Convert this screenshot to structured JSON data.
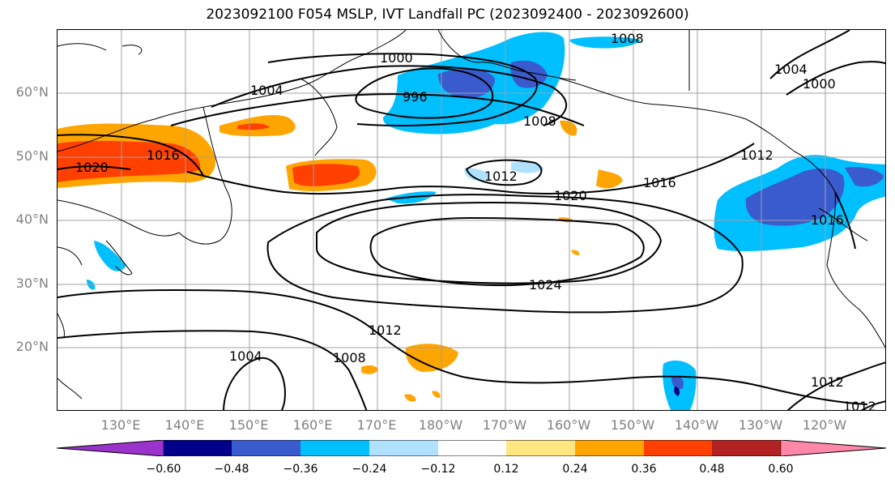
{
  "title": "2023092100 F054 MSLP, IVT Landfall PC (2023092400 - 2023092600)",
  "map": {
    "lat_labels": [
      "60°N",
      "50°N",
      "40°N",
      "30°N",
      "20°N"
    ],
    "lon_labels": [
      "130°E",
      "140°E",
      "150°E",
      "160°E",
      "170°E",
      "180°W",
      "170°W",
      "160°W",
      "150°W",
      "140°W",
      "130°W",
      "120°W"
    ],
    "isobar_labels": [
      "1000",
      "996",
      "1004",
      "1008",
      "1008",
      "1016",
      "1020",
      "1012",
      "1020",
      "1016",
      "1012",
      "1004",
      "1000",
      "1016",
      "1024",
      "1012",
      "1004",
      "1008",
      "1012",
      "1012"
    ]
  },
  "colorbar": {
    "ticks": [
      "−0.60",
      "−0.48",
      "−0.36",
      "−0.24",
      "−0.12",
      "0.12",
      "0.24",
      "0.36",
      "0.48",
      "0.60"
    ],
    "colors": [
      "#9933cc",
      "#00008b",
      "#3a5bcd",
      "#00bfff",
      "#b0e2ff",
      "#ffffff",
      "#ffe680",
      "#ffa500",
      "#ff4000",
      "#b22222",
      "#ff88aa"
    ]
  }
}
